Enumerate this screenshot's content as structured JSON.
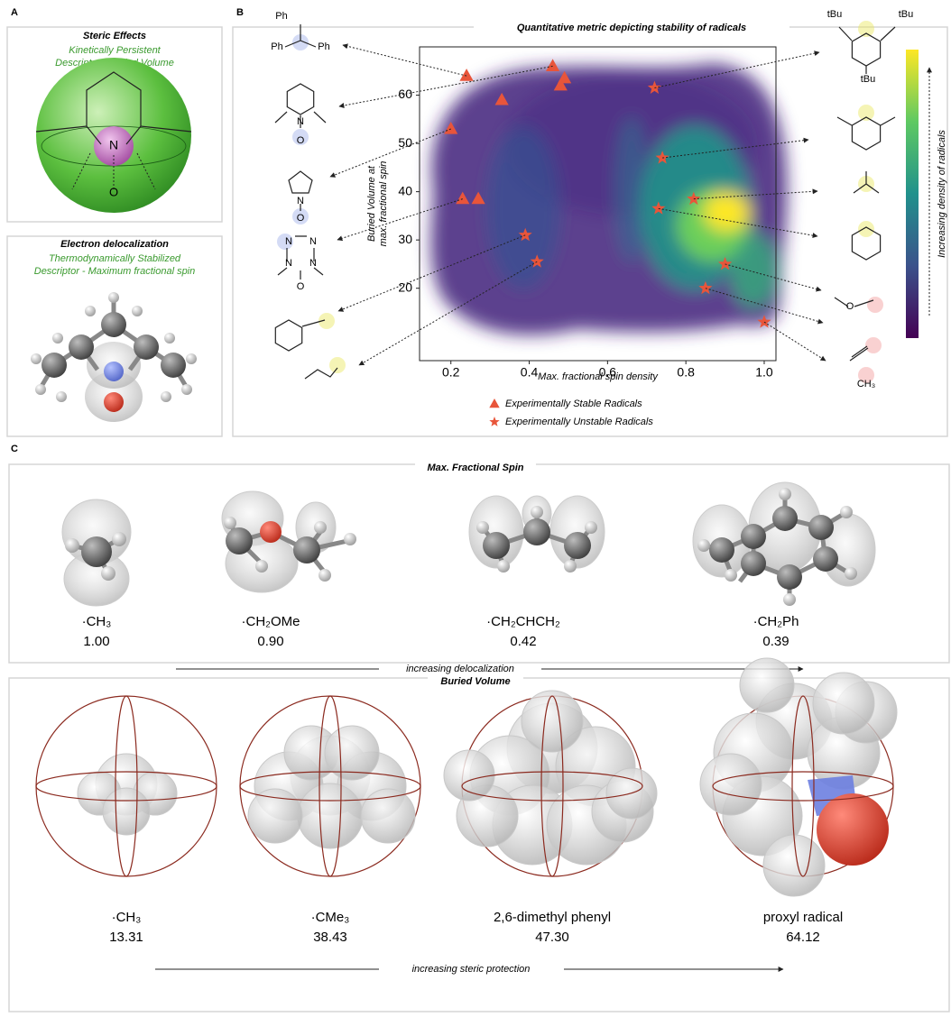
{
  "panel_labels": [
    "A",
    "B",
    "C"
  ],
  "panel_a": {
    "steric": {
      "title": "Steric Effects",
      "line1": "Kinetically Persistent",
      "line2": "Descriptor - Buried Volume",
      "atoms": [
        "N",
        "O"
      ]
    },
    "electronic": {
      "title": "Electron delocalization",
      "line1": "Thermodynamically Stabilized",
      "line2": "Descriptor - Maximum fractional spin"
    }
  },
  "chart_data": {
    "type": "scatter",
    "title": "Quantitative metric depicting stability of radicals",
    "x_label": "Max. fractional spin density",
    "y_label": [
      "Buried Volume at",
      "max. fractional spin"
    ],
    "colorbar_label": "Increasing density of radicals",
    "xlim": [
      0.12,
      1.03
    ],
    "ylim": [
      5,
      70
    ],
    "xticks": [
      0.2,
      0.4,
      0.6,
      0.8,
      {
        "value": 1,
        "label": "1.0"
      }
    ],
    "yticks": [
      20,
      30,
      40,
      50,
      60
    ],
    "series": [
      {
        "name": "Experimentally Stable Radicals",
        "color": "#e8553a",
        "marker": "triangle",
        "x": [
          0.24,
          0.46,
          0.49,
          0.48,
          0.33,
          0.2,
          0.23,
          0.27
        ],
        "values": [
          64,
          66,
          63.5,
          62,
          59,
          53,
          38.5,
          38.5
        ]
      },
      {
        "name": "Experimentally Unstable Radicals",
        "color": "#e8553a",
        "marker": "star",
        "x": [
          0.72,
          0.74,
          0.82,
          0.73,
          0.39,
          0.42,
          0.9,
          0.85,
          1.0
        ],
        "values": [
          61.5,
          47,
          38.5,
          36.5,
          31,
          25.5,
          25,
          20,
          13
        ]
      }
    ]
  },
  "panel_b_structures": [
    "Ph",
    "Ph",
    "Ph",
    "N",
    "O",
    "N",
    "O",
    "N",
    "N",
    "N",
    "N",
    "O",
    "tBu",
    "tBu",
    "tBu",
    "O",
    "CH₃"
  ],
  "panel_c": {
    "spin": {
      "title": "Max. Fractional Spin",
      "items": [
        {
          "name": "·CH₃",
          "value": "1.00"
        },
        {
          "name": "·CH₂OMe",
          "value": "0.90"
        },
        {
          "name": "·CH₂CHCH₂",
          "value": "0.42"
        },
        {
          "name": "·CH₂Ph",
          "value": "0.39"
        }
      ],
      "arrow_label": "increasing delocalization"
    },
    "buried": {
      "title": "Buried Volume",
      "items": [
        {
          "name": "·CH₃",
          "value": "13.31"
        },
        {
          "name": "·CMe₃",
          "value": "38.43"
        },
        {
          "name": "2,6-dimethyl phenyl",
          "value": "47.30"
        },
        {
          "name": "proxyl radical",
          "value": "64.12"
        }
      ],
      "arrow_label": "increasing steric protection"
    }
  }
}
